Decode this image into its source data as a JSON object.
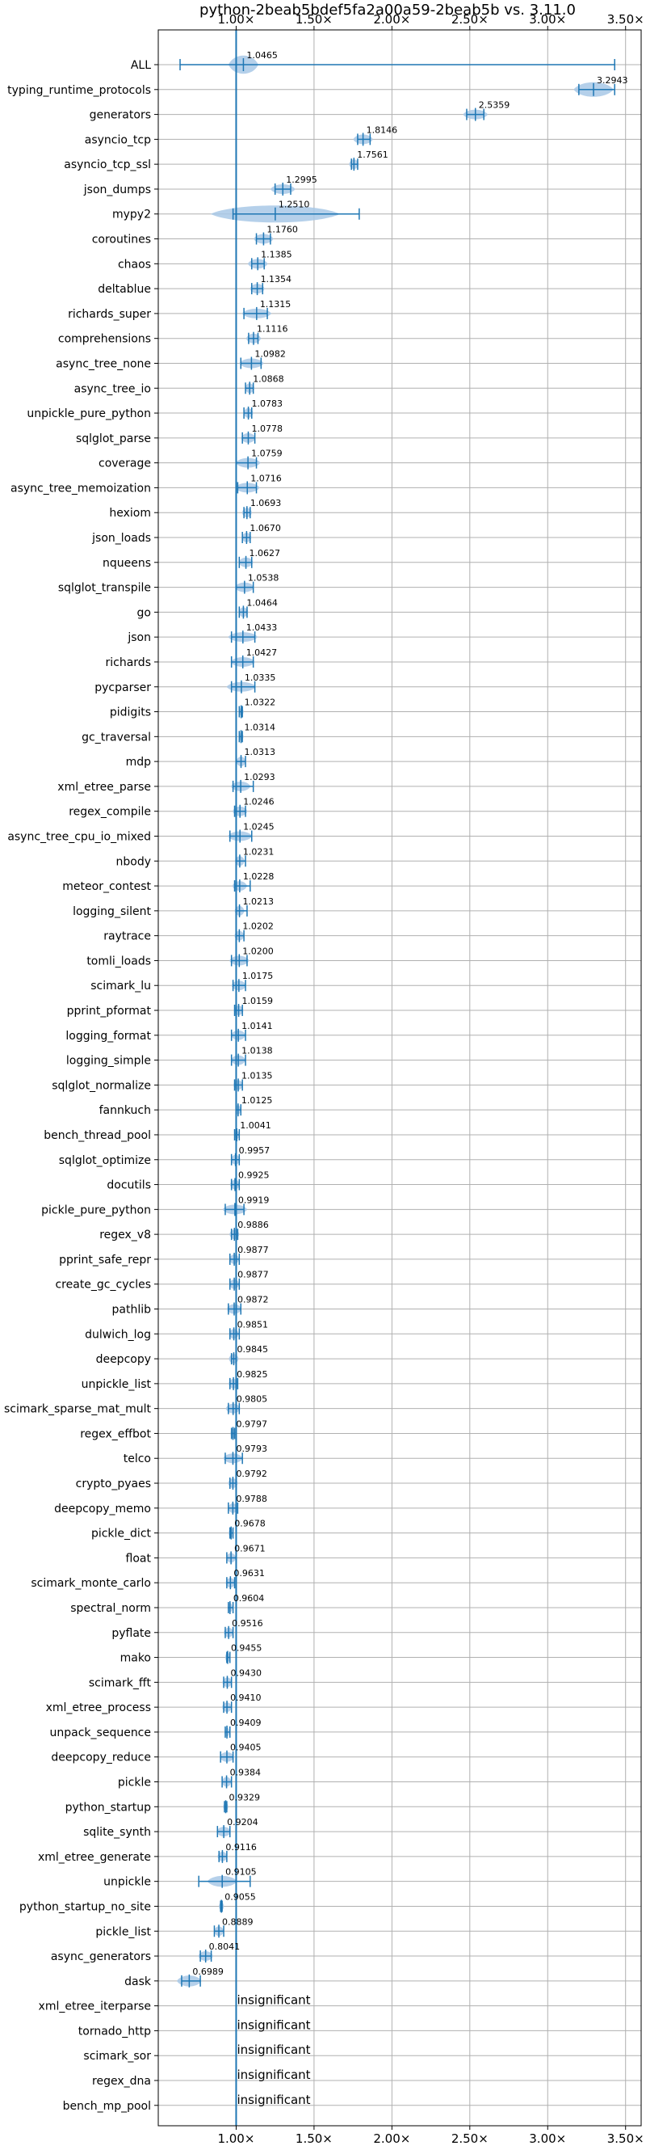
{
  "chart_data": {
    "type": "violin",
    "title": "python-2beab5bdef5fa2a00a59-2beab5b vs. 3.11.0",
    "xlabel": "",
    "ylabel": "",
    "xlim": [
      0.5,
      3.6
    ],
    "xticks": [
      1.0,
      1.5,
      2.0,
      2.5,
      3.0,
      3.5
    ],
    "xtick_labels": [
      "1.00×",
      "1.50×",
      "2.00×",
      "2.50×",
      "3.00×",
      "3.50×"
    ],
    "reference_line": 1.0,
    "grid": true,
    "colors": {
      "violin": "#a8c8e6",
      "line": "#1f77b4",
      "grid": "#b0b0b0"
    },
    "insignificant_text": "insignificant",
    "benchmarks": [
      {
        "name": "ALL",
        "value": 1.0465,
        "label": "1.0465",
        "min": 0.64,
        "max": 3.43,
        "spread": 0.06,
        "h": 15
      },
      {
        "name": "typing_runtime_protocols",
        "value": 3.2943,
        "label": "3.2943",
        "min": 3.2,
        "max": 3.43,
        "spread": 0.08,
        "h": 12
      },
      {
        "name": "generators",
        "value": 2.5359,
        "label": "2.5359",
        "min": 2.48,
        "max": 2.59,
        "spread": 0.05,
        "h": 8
      },
      {
        "name": "asyncio_tcp",
        "value": 1.8146,
        "label": "1.8146",
        "min": 1.78,
        "max": 1.86,
        "spread": 0.04,
        "h": 8
      },
      {
        "name": "asyncio_tcp_ssl",
        "value": 1.7561,
        "label": "1.7561",
        "min": 1.74,
        "max": 1.78,
        "spread": 0.02,
        "h": 8
      },
      {
        "name": "json_dumps",
        "value": 1.2995,
        "label": "1.2995",
        "min": 1.25,
        "max": 1.35,
        "spread": 0.05,
        "h": 8
      },
      {
        "name": "mypy2",
        "value": 1.251,
        "label": "1.2510",
        "min": 0.98,
        "max": 1.79,
        "spread": 0.26,
        "h": 14
      },
      {
        "name": "coroutines",
        "value": 1.176,
        "label": "1.1760",
        "min": 1.13,
        "max": 1.22,
        "spread": 0.04,
        "h": 8
      },
      {
        "name": "chaos",
        "value": 1.1385,
        "label": "1.1385",
        "min": 1.1,
        "max": 1.18,
        "spread": 0.04,
        "h": 8
      },
      {
        "name": "deltablue",
        "value": 1.1354,
        "label": "1.1354",
        "min": 1.1,
        "max": 1.17,
        "spread": 0.03,
        "h": 8
      },
      {
        "name": "richards_super",
        "value": 1.1315,
        "label": "1.1315",
        "min": 1.05,
        "max": 1.2,
        "spread": 0.06,
        "h": 8
      },
      {
        "name": "comprehensions",
        "value": 1.1116,
        "label": "1.1116",
        "min": 1.08,
        "max": 1.14,
        "spread": 0.03,
        "h": 8
      },
      {
        "name": "async_tree_none",
        "value": 1.0982,
        "label": "1.0982",
        "min": 1.03,
        "max": 1.16,
        "spread": 0.05,
        "h": 8
      },
      {
        "name": "async_tree_io",
        "value": 1.0868,
        "label": "1.0868",
        "min": 1.06,
        "max": 1.11,
        "spread": 0.02,
        "h": 8
      },
      {
        "name": "unpickle_pure_python",
        "value": 1.0783,
        "label": "1.0783",
        "min": 1.05,
        "max": 1.1,
        "spread": 0.02,
        "h": 8
      },
      {
        "name": "sqlglot_parse",
        "value": 1.0778,
        "label": "1.0778",
        "min": 1.04,
        "max": 1.12,
        "spread": 0.03,
        "h": 8
      },
      {
        "name": "coverage",
        "value": 1.0759,
        "label": "1.0759",
        "min": 1.0,
        "max": 1.13,
        "spread": 0.05,
        "h": 8
      },
      {
        "name": "async_tree_memoization",
        "value": 1.0716,
        "label": "1.0716",
        "min": 1.01,
        "max": 1.13,
        "spread": 0.05,
        "h": 8
      },
      {
        "name": "hexiom",
        "value": 1.0693,
        "label": "1.0693",
        "min": 1.05,
        "max": 1.09,
        "spread": 0.02,
        "h": 8
      },
      {
        "name": "json_loads",
        "value": 1.067,
        "label": "1.0670",
        "min": 1.04,
        "max": 1.09,
        "spread": 0.02,
        "h": 8
      },
      {
        "name": "nqueens",
        "value": 1.0627,
        "label": "1.0627",
        "min": 1.02,
        "max": 1.1,
        "spread": 0.03,
        "h": 8
      },
      {
        "name": "sqlglot_transpile",
        "value": 1.0538,
        "label": "1.0538",
        "min": 1.0,
        "max": 1.11,
        "spread": 0.04,
        "h": 8
      },
      {
        "name": "go",
        "value": 1.0464,
        "label": "1.0464",
        "min": 1.02,
        "max": 1.07,
        "spread": 0.02,
        "h": 8
      },
      {
        "name": "json",
        "value": 1.0433,
        "label": "1.0433",
        "min": 0.97,
        "max": 1.12,
        "spread": 0.06,
        "h": 8
      },
      {
        "name": "richards",
        "value": 1.0427,
        "label": "1.0427",
        "min": 0.97,
        "max": 1.11,
        "spread": 0.05,
        "h": 8
      },
      {
        "name": "pycparser",
        "value": 1.0335,
        "label": "1.0335",
        "min": 0.97,
        "max": 1.12,
        "spread": 0.06,
        "h": 8
      },
      {
        "name": "pidigits",
        "value": 1.0322,
        "label": "1.0322",
        "min": 1.02,
        "max": 1.04,
        "spread": 0.01,
        "h": 6
      },
      {
        "name": "gc_traversal",
        "value": 1.0314,
        "label": "1.0314",
        "min": 1.02,
        "max": 1.04,
        "spread": 0.01,
        "h": 6
      },
      {
        "name": "mdp",
        "value": 1.0313,
        "label": "1.0313",
        "min": 1.0,
        "max": 1.06,
        "spread": 0.02,
        "h": 8
      },
      {
        "name": "xml_etree_parse",
        "value": 1.0293,
        "label": "1.0293",
        "min": 0.98,
        "max": 1.11,
        "spread": 0.04,
        "h": 8
      },
      {
        "name": "regex_compile",
        "value": 1.0246,
        "label": "1.0246",
        "min": 0.99,
        "max": 1.06,
        "spread": 0.03,
        "h": 8
      },
      {
        "name": "async_tree_cpu_io_mixed",
        "value": 1.0245,
        "label": "1.0245",
        "min": 0.96,
        "max": 1.1,
        "spread": 0.05,
        "h": 8
      },
      {
        "name": "nbody",
        "value": 1.0231,
        "label": "1.0231",
        "min": 1.0,
        "max": 1.06,
        "spread": 0.02,
        "h": 8
      },
      {
        "name": "meteor_contest",
        "value": 1.0228,
        "label": "1.0228",
        "min": 0.99,
        "max": 1.09,
        "spread": 0.03,
        "h": 8
      },
      {
        "name": "logging_silent",
        "value": 1.0213,
        "label": "1.0213",
        "min": 1.0,
        "max": 1.07,
        "spread": 0.02,
        "h": 8
      },
      {
        "name": "raytrace",
        "value": 1.0202,
        "label": "1.0202",
        "min": 1.0,
        "max": 1.05,
        "spread": 0.02,
        "h": 8
      },
      {
        "name": "tomli_loads",
        "value": 1.02,
        "label": "1.0200",
        "min": 0.97,
        "max": 1.07,
        "spread": 0.04,
        "h": 8
      },
      {
        "name": "scimark_lu",
        "value": 1.0175,
        "label": "1.0175",
        "min": 0.98,
        "max": 1.06,
        "spread": 0.03,
        "h": 8
      },
      {
        "name": "pprint_pformat",
        "value": 1.0159,
        "label": "1.0159",
        "min": 0.99,
        "max": 1.04,
        "spread": 0.02,
        "h": 8
      },
      {
        "name": "logging_format",
        "value": 1.0141,
        "label": "1.0141",
        "min": 0.97,
        "max": 1.06,
        "spread": 0.03,
        "h": 8
      },
      {
        "name": "logging_simple",
        "value": 1.0138,
        "label": "1.0138",
        "min": 0.97,
        "max": 1.06,
        "spread": 0.03,
        "h": 8
      },
      {
        "name": "sqlglot_normalize",
        "value": 1.0135,
        "label": "1.0135",
        "min": 0.99,
        "max": 1.04,
        "spread": 0.02,
        "h": 8
      },
      {
        "name": "fannkuch",
        "value": 1.0125,
        "label": "1.0125",
        "min": 1.0,
        "max": 1.03,
        "spread": 0.01,
        "h": 8
      },
      {
        "name": "bench_thread_pool",
        "value": 1.0041,
        "label": "1.0041",
        "min": 0.99,
        "max": 1.02,
        "spread": 0.01,
        "h": 7
      },
      {
        "name": "sqlglot_optimize",
        "value": 0.9957,
        "label": "0.9957",
        "min": 0.97,
        "max": 1.02,
        "spread": 0.02,
        "h": 8
      },
      {
        "name": "docutils",
        "value": 0.9925,
        "label": "0.9925",
        "min": 0.97,
        "max": 1.02,
        "spread": 0.02,
        "h": 8
      },
      {
        "name": "pickle_pure_python",
        "value": 0.9919,
        "label": "0.9919",
        "min": 0.93,
        "max": 1.05,
        "spread": 0.05,
        "h": 8
      },
      {
        "name": "regex_v8",
        "value": 0.9886,
        "label": "0.9886",
        "min": 0.97,
        "max": 1.01,
        "spread": 0.02,
        "h": 8
      },
      {
        "name": "pprint_safe_repr",
        "value": 0.9877,
        "label": "0.9877",
        "min": 0.96,
        "max": 1.02,
        "spread": 0.02,
        "h": 8
      },
      {
        "name": "create_gc_cycles",
        "value": 0.9877,
        "label": "0.9877",
        "min": 0.96,
        "max": 1.02,
        "spread": 0.02,
        "h": 8
      },
      {
        "name": "pathlib",
        "value": 0.9872,
        "label": "0.9872",
        "min": 0.95,
        "max": 1.03,
        "spread": 0.03,
        "h": 8
      },
      {
        "name": "dulwich_log",
        "value": 0.9851,
        "label": "0.9851",
        "min": 0.96,
        "max": 1.02,
        "spread": 0.02,
        "h": 8
      },
      {
        "name": "deepcopy",
        "value": 0.9845,
        "label": "0.9845",
        "min": 0.97,
        "max": 1.0,
        "spread": 0.02,
        "h": 8
      },
      {
        "name": "unpickle_list",
        "value": 0.9825,
        "label": "0.9825",
        "min": 0.96,
        "max": 1.01,
        "spread": 0.02,
        "h": 8
      },
      {
        "name": "scimark_sparse_mat_mult",
        "value": 0.9805,
        "label": "0.9805",
        "min": 0.95,
        "max": 1.02,
        "spread": 0.03,
        "h": 8
      },
      {
        "name": "regex_effbot",
        "value": 0.9797,
        "label": "0.9797",
        "min": 0.97,
        "max": 0.99,
        "spread": 0.01,
        "h": 8
      },
      {
        "name": "telco",
        "value": 0.9793,
        "label": "0.9793",
        "min": 0.93,
        "max": 1.04,
        "spread": 0.04,
        "h": 8
      },
      {
        "name": "crypto_pyaes",
        "value": 0.9792,
        "label": "0.9792",
        "min": 0.96,
        "max": 1.0,
        "spread": 0.02,
        "h": 8
      },
      {
        "name": "deepcopy_memo",
        "value": 0.9788,
        "label": "0.9788",
        "min": 0.95,
        "max": 1.01,
        "spread": 0.02,
        "h": 8
      },
      {
        "name": "pickle_dict",
        "value": 0.9678,
        "label": "0.9678",
        "min": 0.96,
        "max": 0.98,
        "spread": 0.01,
        "h": 8
      },
      {
        "name": "float",
        "value": 0.9671,
        "label": "0.9671",
        "min": 0.94,
        "max": 1.0,
        "spread": 0.02,
        "h": 8
      },
      {
        "name": "scimark_monte_carlo",
        "value": 0.9631,
        "label": "0.9631",
        "min": 0.94,
        "max": 0.99,
        "spread": 0.02,
        "h": 8
      },
      {
        "name": "spectral_norm",
        "value": 0.9604,
        "label": "0.9604",
        "min": 0.95,
        "max": 0.98,
        "spread": 0.01,
        "h": 8
      },
      {
        "name": "pyflate",
        "value": 0.9516,
        "label": "0.9516",
        "min": 0.93,
        "max": 0.98,
        "spread": 0.02,
        "h": 8
      },
      {
        "name": "mako",
        "value": 0.9455,
        "label": "0.9455",
        "min": 0.94,
        "max": 0.96,
        "spread": 0.01,
        "h": 8
      },
      {
        "name": "scimark_fft",
        "value": 0.943,
        "label": "0.9430",
        "min": 0.92,
        "max": 0.97,
        "spread": 0.02,
        "h": 8
      },
      {
        "name": "xml_etree_process",
        "value": 0.941,
        "label": "0.9410",
        "min": 0.92,
        "max": 0.97,
        "spread": 0.02,
        "h": 8
      },
      {
        "name": "unpack_sequence",
        "value": 0.9409,
        "label": "0.9409",
        "min": 0.93,
        "max": 0.96,
        "spread": 0.01,
        "h": 8
      },
      {
        "name": "deepcopy_reduce",
        "value": 0.9405,
        "label": "0.9405",
        "min": 0.9,
        "max": 0.98,
        "spread": 0.03,
        "h": 8
      },
      {
        "name": "pickle",
        "value": 0.9384,
        "label": "0.9384",
        "min": 0.91,
        "max": 0.97,
        "spread": 0.02,
        "h": 8
      },
      {
        "name": "python_startup",
        "value": 0.9329,
        "label": "0.9329",
        "min": 0.925,
        "max": 0.94,
        "spread": 0.005,
        "h": 7
      },
      {
        "name": "sqlite_synth",
        "value": 0.9204,
        "label": "0.9204",
        "min": 0.88,
        "max": 0.96,
        "spread": 0.03,
        "h": 8
      },
      {
        "name": "xml_etree_generate",
        "value": 0.9116,
        "label": "0.9116",
        "min": 0.89,
        "max": 0.94,
        "spread": 0.02,
        "h": 8
      },
      {
        "name": "unpickle",
        "value": 0.9105,
        "label": "0.9105",
        "min": 0.76,
        "max": 1.09,
        "spread": 0.06,
        "h": 9
      },
      {
        "name": "python_startup_no_site",
        "value": 0.9055,
        "label": "0.9055",
        "min": 0.9,
        "max": 0.91,
        "spread": 0.004,
        "h": 7
      },
      {
        "name": "pickle_list",
        "value": 0.8889,
        "label": "0.8889",
        "min": 0.86,
        "max": 0.92,
        "spread": 0.02,
        "h": 8
      },
      {
        "name": "async_generators",
        "value": 0.8041,
        "label": "0.8041",
        "min": 0.77,
        "max": 0.84,
        "spread": 0.03,
        "h": 8
      },
      {
        "name": "dask",
        "value": 0.6989,
        "label": "0.6989",
        "min": 0.65,
        "max": 0.77,
        "spread": 0.05,
        "h": 9
      },
      {
        "name": "xml_etree_iterparse",
        "value": null,
        "label": "insignificant"
      },
      {
        "name": "tornado_http",
        "value": null,
        "label": "insignificant"
      },
      {
        "name": "scimark_sor",
        "value": null,
        "label": "insignificant"
      },
      {
        "name": "regex_dna",
        "value": null,
        "label": "insignificant"
      },
      {
        "name": "bench_mp_pool",
        "value": null,
        "label": "insignificant"
      }
    ]
  }
}
